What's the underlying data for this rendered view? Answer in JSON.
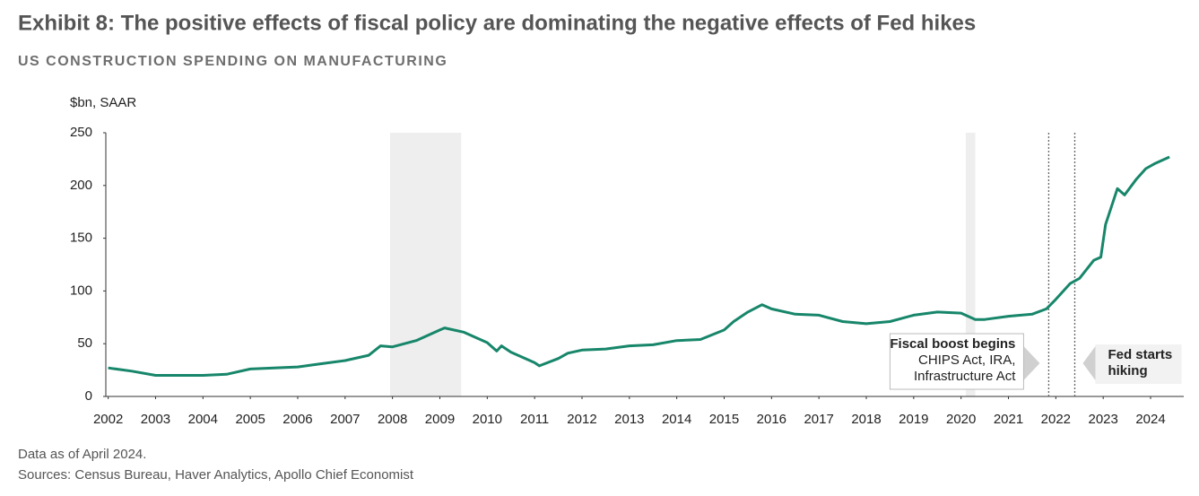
{
  "chart_data": {
    "type": "line",
    "title": "Exhibit 8: The positive effects of fiscal policy are dominating the negative effects of Fed hikes",
    "subtitle": "US CONSTRUCTION SPENDING ON MANUFACTURING",
    "y_label": "$bn, SAAR",
    "notes": [
      "Data as of April 2024.",
      "Sources: Census Bureau, Haver Analytics, Apollo Chief Economist"
    ],
    "color": "#17866a",
    "x": [
      2002,
      2002.5,
      2003,
      2003.5,
      2004,
      2004.5,
      2005,
      2005.5,
      2006,
      2006.5,
      2007,
      2007.5,
      2007.75,
      2008,
      2008.5,
      2009,
      2009.1,
      2009.5,
      2010,
      2010.2,
      2010.3,
      2010.5,
      2011,
      2011.1,
      2011.5,
      2011.7,
      2012,
      2012.5,
      2013,
      2013.5,
      2014,
      2014.5,
      2015,
      2015.2,
      2015.5,
      2015.8,
      2016,
      2016.5,
      2017,
      2017.5,
      2018,
      2018.5,
      2019,
      2019.5,
      2020,
      2020.3,
      2020.5,
      2021,
      2021.5,
      2021.8,
      2022,
      2022.3,
      2022.5,
      2022.8,
      2022.95,
      2023.05,
      2023.3,
      2023.45,
      2023.7,
      2023.9,
      2024.1,
      2024.4
    ],
    "values": [
      27,
      24,
      20,
      20,
      20,
      21,
      26,
      27,
      28,
      31,
      34,
      39,
      48,
      47,
      53,
      63,
      65,
      61,
      51,
      43,
      48,
      42,
      32,
      29,
      36,
      41,
      44,
      45,
      48,
      49,
      53,
      54,
      63,
      71,
      80,
      87,
      83,
      78,
      77,
      71,
      69,
      71,
      77,
      80,
      79,
      73,
      73,
      76,
      78,
      83,
      92,
      107,
      112,
      129,
      132,
      163,
      197,
      191,
      206,
      216,
      221,
      227
    ],
    "xlim": [
      2001.95,
      2024.7
    ],
    "xticks": [
      2002,
      2003,
      2004,
      2005,
      2006,
      2007,
      2008,
      2009,
      2010,
      2011,
      2012,
      2013,
      2014,
      2015,
      2016,
      2017,
      2018,
      2019,
      2020,
      2021,
      2022,
      2023,
      2024
    ],
    "ylim": [
      0,
      250
    ],
    "yticks": [
      0,
      50,
      100,
      150,
      200,
      250
    ],
    "recessions": [
      [
        2007.95,
        2009.45
      ],
      [
        2020.1,
        2020.3
      ]
    ],
    "annotations": [
      {
        "x": 2021.85,
        "lines": [
          "Fiscal boost begins",
          "CHIPS Act, IRA,",
          "Infrastructure Act"
        ]
      },
      {
        "x": 2022.4,
        "lines": [
          "Fed starts",
          "hiking"
        ]
      }
    ]
  }
}
